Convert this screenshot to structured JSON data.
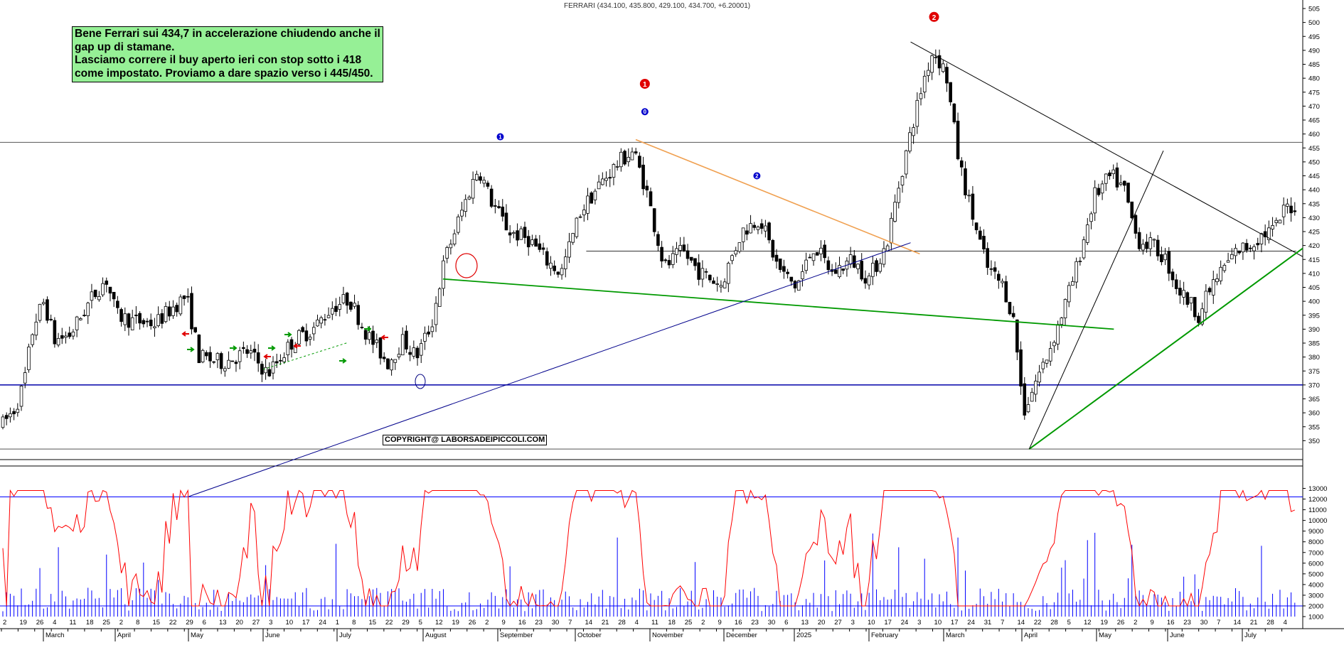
{
  "header": {
    "title": "FERRARI (434.100, 435.800, 429.100, 434.700, +6.20001)"
  },
  "note": {
    "text": "Bene Ferrari sui 434,7 in accelerazione chiudendo anche il gap up di stamane.\nLasciamo correre il buy aperto ieri con stop sotto i 418 come impostato. Proviamo a dare spazio verso i 445/450."
  },
  "copyright": "COPYRIGHT@ LABORSADEIPICCOLI.COM",
  "colors": {
    "support_line": "#0000aa",
    "resistance_line": "#555555",
    "trend_black": "#000000",
    "trend_orange": "#f0a050",
    "trend_green": "#009900",
    "trend_blue": "#00008b",
    "oscillator": "#ff0000",
    "volume": "#0000ff",
    "label_red": "#e00000",
    "label_blue": "#0000cc"
  },
  "chart_data": [
    {
      "type": "candlestick",
      "title": "FERRARI (434.100, 435.800, 429.100, 434.700, +6.20001)",
      "ylim": [
        345,
        505
      ],
      "y_ticks": [
        350,
        355,
        360,
        365,
        370,
        375,
        380,
        385,
        390,
        395,
        400,
        405,
        410,
        415,
        420,
        425,
        430,
        435,
        440,
        445,
        450,
        455,
        460,
        465,
        470,
        475,
        480,
        485,
        490,
        495,
        500,
        505
      ],
      "x_day_ticks": [
        "2",
        "19",
        "26",
        "4",
        "11",
        "18",
        "25",
        "2",
        "8",
        "15",
        "22",
        "29",
        "6",
        "13",
        "20",
        "27",
        "3",
        "10",
        "17",
        "24",
        "1",
        "8",
        "15",
        "22",
        "29",
        "5",
        "12",
        "19",
        "26",
        "2",
        "9",
        "16",
        "23",
        "30",
        "7",
        "14",
        "21",
        "28",
        "4",
        "11",
        "18",
        "25",
        "2",
        "9",
        "16",
        "23",
        "30",
        "6",
        "13",
        "20",
        "27",
        "3",
        "10",
        "17",
        "24",
        "3",
        "10",
        "17",
        "24",
        "31",
        "7",
        "14",
        "22",
        "28",
        "5",
        "12",
        "19",
        "26",
        "2",
        "9",
        "16",
        "23",
        "30",
        "7",
        "14",
        "21",
        "28",
        "4"
      ],
      "x_month_labels": [
        "March",
        "April",
        "May",
        "June",
        "July",
        "August",
        "September",
        "October",
        "November",
        "December",
        "2025",
        "February",
        "March",
        "April",
        "May",
        "June",
        "July"
      ],
      "horizontal_levels": [
        {
          "name": "resistance",
          "value": 457
        },
        {
          "name": "support",
          "value": 370
        },
        {
          "name": "base",
          "value": 347
        },
        {
          "name": "mid",
          "value": 418
        }
      ],
      "trendlines": [
        {
          "name": "downtrend-black",
          "from": [
            0.699,
            493
          ],
          "to": [
            1.0,
            416
          ]
        },
        {
          "name": "downtrend-orange",
          "from": [
            0.488,
            458
          ],
          "to": [
            0.706,
            417
          ]
        },
        {
          "name": "long-support-green",
          "from": [
            0.34,
            408
          ],
          "to": [
            0.855,
            390
          ]
        },
        {
          "name": "long-uptrend-blue",
          "from": [
            0.145,
            330
          ],
          "to": [
            0.699,
            421
          ]
        },
        {
          "name": "uptrend-green-2025",
          "from": [
            0.79,
            347
          ],
          "to": [
            1.0,
            419
          ]
        },
        {
          "name": "uptrend-black-steep",
          "from": [
            0.79,
            347
          ],
          "to": [
            0.893,
            454
          ]
        }
      ],
      "annotations": [
        {
          "label": "1",
          "style": "red-circle",
          "x": 0.495,
          "value": 478
        },
        {
          "label": "0",
          "style": "blue-circle",
          "x": 0.495,
          "value": 468
        },
        {
          "label": "1",
          "style": "blue-circle",
          "x": 0.384,
          "value": 459
        },
        {
          "label": "2",
          "style": "blue-circle",
          "x": 0.581,
          "value": 445
        },
        {
          "label": "2",
          "style": "red-circle",
          "x": 0.717,
          "value": 502
        }
      ],
      "last_close": 434.7
    },
    {
      "type": "line+bar",
      "name": "volume-oscillator",
      "ylim": [
        1000,
        13500
      ],
      "y_ticks": [
        1000,
        2000,
        3000,
        4000,
        5000,
        6000,
        7000,
        8000,
        9000,
        10000,
        11000,
        12000,
        13000
      ],
      "reference_levels": [
        2000,
        12200
      ]
    }
  ]
}
